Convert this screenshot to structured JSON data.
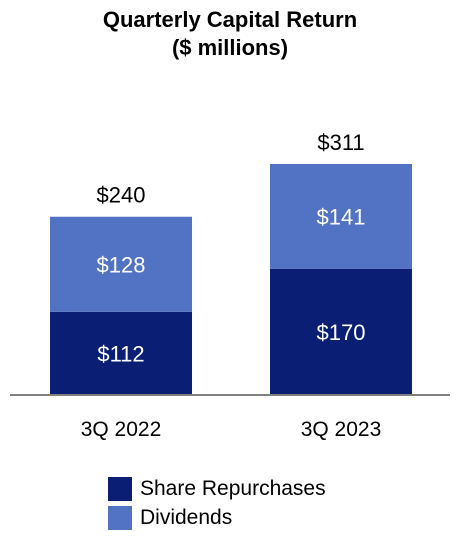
{
  "chart_data": {
    "type": "bar",
    "stacked": true,
    "title": "Quarterly Capital Return",
    "subtitle": "($ millions)",
    "categories": [
      "3Q 2022",
      "3Q 2023"
    ],
    "series": [
      {
        "name": "Share Repurchases",
        "values": [
          112,
          170
        ],
        "labels": [
          "$112",
          "$170"
        ],
        "color": "#0a1f74"
      },
      {
        "name": "Dividends",
        "values": [
          128,
          141
        ],
        "labels": [
          "$128",
          "$141"
        ],
        "color": "#5272c4"
      }
    ],
    "totals": [
      240,
      311
    ],
    "total_labels": [
      "$240",
      "$311"
    ],
    "legend_placement": "bottom",
    "grid": false
  }
}
